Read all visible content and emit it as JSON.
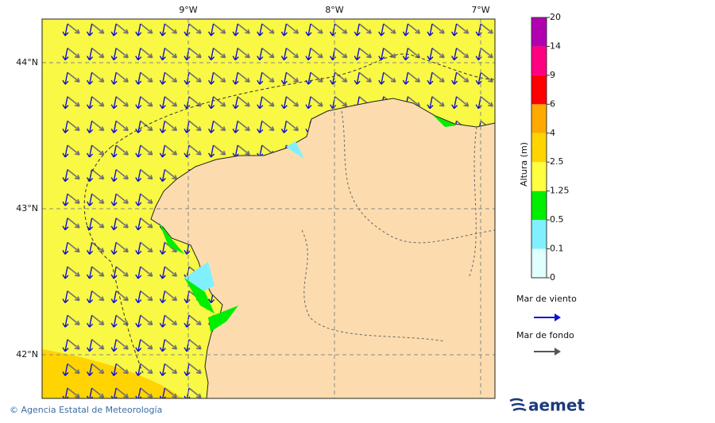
{
  "map": {
    "lon_ticks": [
      {
        "value": -9,
        "label": "9°W"
      },
      {
        "value": -8,
        "label": "8°W"
      },
      {
        "value": -7,
        "label": "7°W"
      }
    ],
    "lat_ticks": [
      {
        "value": 44,
        "label": "44°N"
      },
      {
        "value": 43,
        "label": "43°N"
      },
      {
        "value": 42,
        "label": "42°N"
      }
    ]
  },
  "colorbar": {
    "title": "Altura (m)",
    "levels": [
      0,
      0.1,
      0.5,
      1.25,
      2.5,
      4,
      6,
      9,
      14,
      20
    ],
    "colors": [
      "#e0ffff",
      "#80f0ff",
      "#00ee00",
      "#ffff40",
      "#ffd400",
      "#ffaa00",
      "#ff0000",
      "#ff0080",
      "#b000b0"
    ]
  },
  "legend": {
    "wind_sea": "Mar de viento",
    "swell": "Mar de fondo"
  },
  "footer": {
    "credit": "© Agencia Estatal de Meteorología",
    "logo": "aemet"
  }
}
